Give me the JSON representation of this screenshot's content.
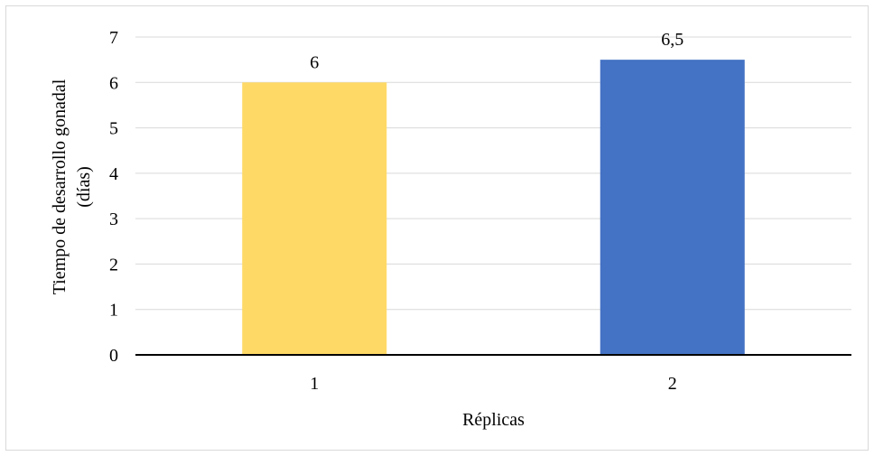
{
  "chart_data": {
    "type": "bar",
    "categories": [
      "1",
      "2"
    ],
    "values": [
      6,
      6.5
    ],
    "data_labels": [
      "6",
      "6,5"
    ],
    "bar_colors": [
      "#FFD966",
      "#4472C4"
    ],
    "title": "",
    "xlabel": "Réplicas",
    "ylabel": "Tiempo de desarrollo gonadal",
    "ylabel_line2": "(días)",
    "ylim": [
      0,
      7
    ],
    "yticks": [
      "0",
      "1",
      "2",
      "3",
      "4",
      "5",
      "6",
      "7"
    ],
    "grid": true,
    "legend": "none"
  },
  "colors": {
    "gridline": "#d9d9d9",
    "axis": "#000000",
    "frame": "#d9d9d9"
  }
}
